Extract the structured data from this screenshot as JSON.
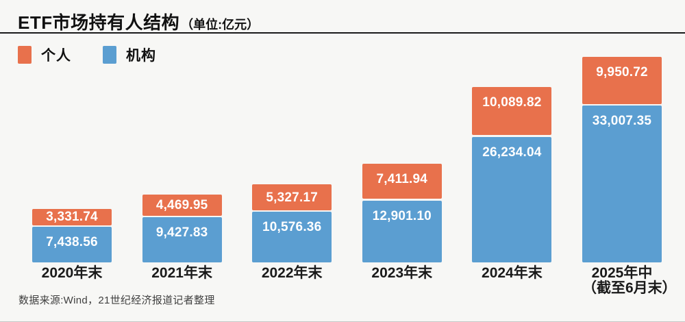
{
  "header": {
    "title": "ETF市场持有人结构",
    "unit": "（单位:亿元）"
  },
  "chart_data": {
    "type": "bar",
    "stacked": true,
    "title": "ETF市场持有人结构",
    "unit": "亿元",
    "legend_position": "top-left",
    "grid": false,
    "categories": [
      "2020年末",
      "2021年末",
      "2022年末",
      "2023年末",
      "2024年末",
      "2025年中"
    ],
    "category_sublabels": [
      null,
      null,
      null,
      null,
      null,
      "（截至6月末）"
    ],
    "series": [
      {
        "id": "personal",
        "name": "个人",
        "color": "#E8714C",
        "values": [
          3331.74,
          4469.95,
          5327.17,
          7411.94,
          10089.82,
          9950.72
        ]
      },
      {
        "id": "institution",
        "name": "机构",
        "color": "#5B9ED1",
        "values": [
          7438.56,
          9427.83,
          10576.36,
          12901.1,
          26234.04,
          33007.35
        ]
      }
    ],
    "totals": [
      10770.3,
      13897.78,
      15903.53,
      20313.04,
      36323.86,
      42958.07
    ]
  },
  "footer": {
    "source": "数据来源:Wind，21世纪经济报道记者整理"
  },
  "colors": {
    "personal": "#E8714C",
    "institution": "#5B9ED1",
    "background": "#F7F7F5",
    "rule": "#1a1a1a"
  }
}
